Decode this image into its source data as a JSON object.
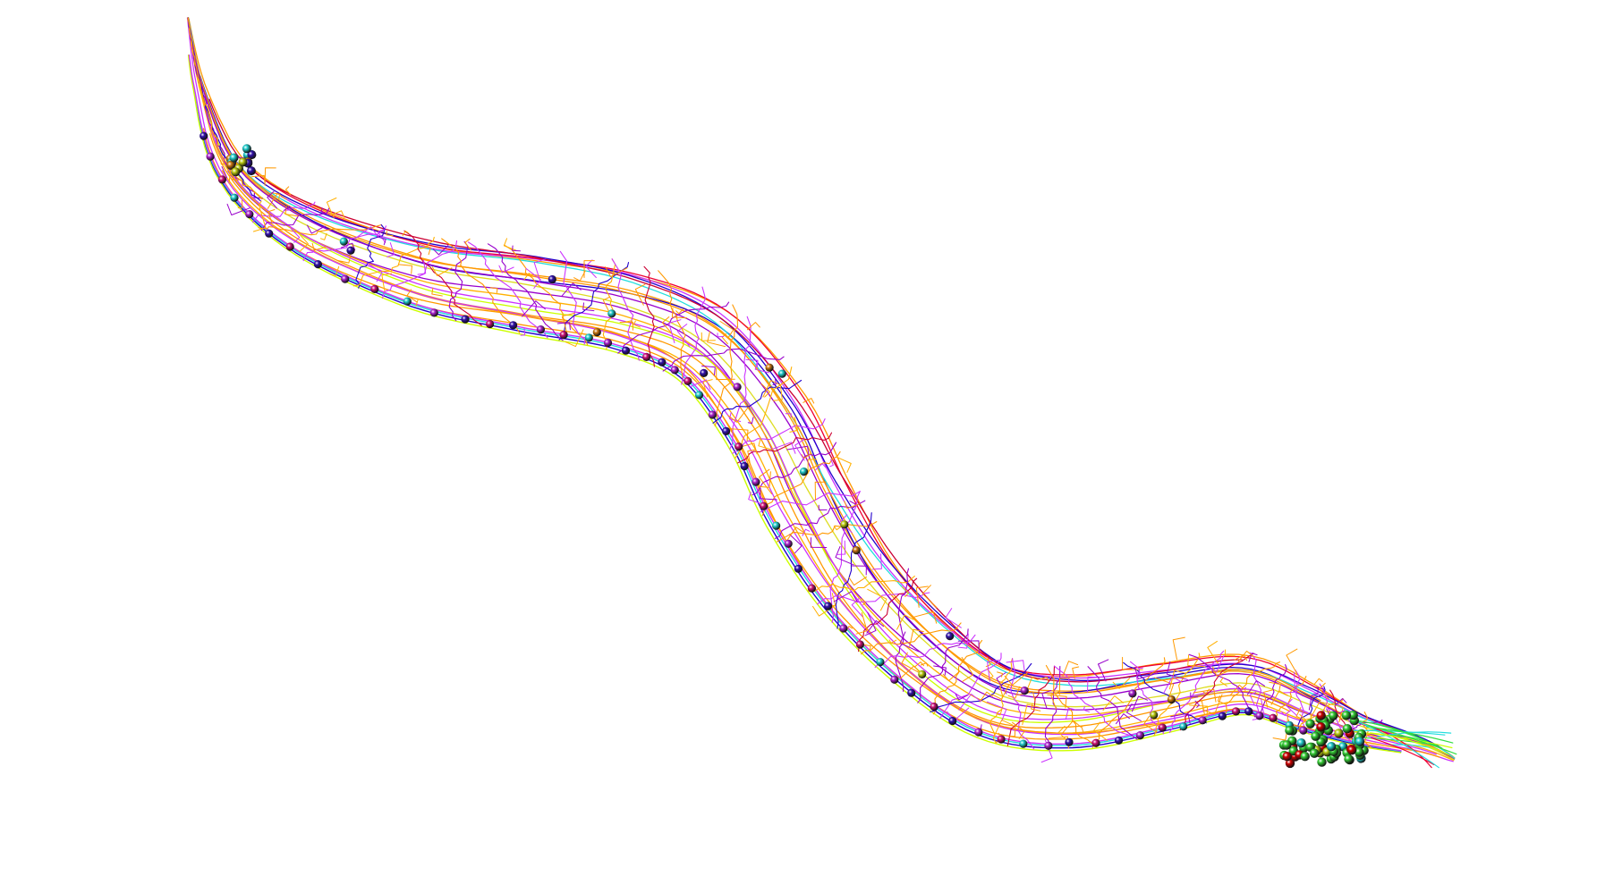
{
  "scene": {
    "background": "#ffffff",
    "subject": "neuron-reconstruction",
    "palette": {
      "orange": "#ff9900",
      "gold": "#ffb000",
      "magenta": "#cc33ff",
      "violet": "#9900cc",
      "blue": "#2200cc",
      "red": "#ee0033",
      "crimson": "#cc0033",
      "cyan": "#22dddd",
      "green": "#33dd44",
      "lime": "#ccff00",
      "yellow": "#dddd22"
    },
    "soma_colors": [
      "#3311aa",
      "#aa22cc",
      "#cc1177",
      "#22cccc",
      "#33cc33",
      "#cc0000",
      "#cc7711",
      "#bbcc11"
    ]
  }
}
